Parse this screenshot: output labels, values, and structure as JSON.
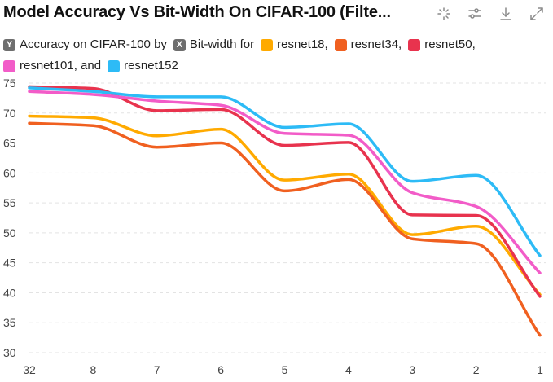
{
  "title": "Model Accuracy Vs Bit-Width On CIFAR-100 (Filte...",
  "toolbar": {
    "icons": [
      "sparkle-icon",
      "sliders-icon",
      "download-icon",
      "expand-icon"
    ]
  },
  "legend": {
    "prefix_y_badge": "Y",
    "prefix_y_text": "Accuracy on CIFAR-100 by",
    "prefix_x_badge": "X",
    "prefix_x_text": "Bit-width for",
    "entries": [
      {
        "label": "resnet18,",
        "color": "#FFAA00"
      },
      {
        "label": "resnet34,",
        "color": "#F06020"
      },
      {
        "label": "resnet50,",
        "color": "#E8334E"
      },
      {
        "label": "resnet101, and",
        "color": "#F25CC8"
      },
      {
        "label": "resnet152",
        "color": "#2DBBF6"
      }
    ]
  },
  "chart_data": {
    "type": "line",
    "categories": [
      "32",
      "8",
      "7",
      "6",
      "5",
      "4",
      "3",
      "2",
      "1"
    ],
    "ylim": [
      30,
      75
    ],
    "yticks": [
      30,
      35,
      40,
      45,
      50,
      55,
      60,
      65,
      70,
      75
    ],
    "grid": true,
    "legend_position": "top",
    "series": [
      {
        "name": "resnet18",
        "color": "#FFAA00",
        "values": [
          69.5,
          69.2,
          66.2,
          67.3,
          58.8,
          59.8,
          49.7,
          51.1,
          39.7
        ]
      },
      {
        "name": "resnet34",
        "color": "#F06020",
        "values": [
          68.3,
          67.9,
          64.3,
          65.0,
          57.0,
          58.9,
          49.0,
          48.2,
          32.9
        ]
      },
      {
        "name": "resnet50",
        "color": "#E8334E",
        "values": [
          74.4,
          74.1,
          70.4,
          70.6,
          64.6,
          65.1,
          53.0,
          52.9,
          39.4
        ]
      },
      {
        "name": "resnet101",
        "color": "#F25CC8",
        "values": [
          73.6,
          73.1,
          72.0,
          71.3,
          66.6,
          66.3,
          56.7,
          54.4,
          43.3
        ]
      },
      {
        "name": "resnet152",
        "color": "#2DBBF6",
        "values": [
          74.2,
          73.6,
          72.7,
          72.7,
          67.6,
          68.2,
          58.6,
          59.6,
          46.2
        ]
      }
    ]
  }
}
